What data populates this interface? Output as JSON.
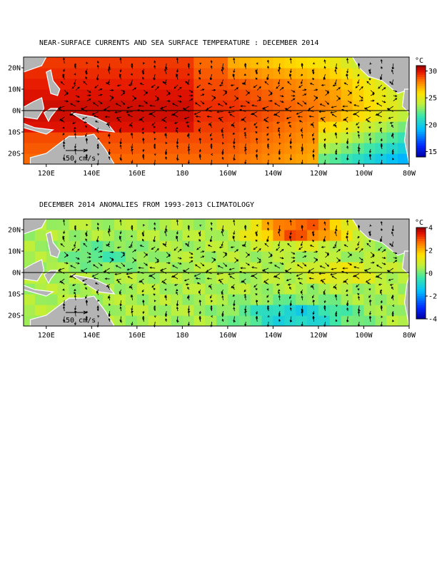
{
  "panels": [
    {
      "title": "NEAR-SURFACE CURRENTS AND SEA SURFACE TEMPERATURE : DECEMBER 2014",
      "kind": "sst",
      "lat_labels": [
        "20N",
        "10N",
        "0N",
        "10S",
        "20S"
      ],
      "lon_labels": [
        "120E",
        "140E",
        "160E",
        "180",
        "160W",
        "140W",
        "120W",
        "100W",
        "80W"
      ],
      "scale_label": "50 cm/s",
      "colorbar": {
        "unit": "°C",
        "ticks": [
          "30",
          "25",
          "20",
          "15"
        ],
        "range": [
          14,
          31
        ]
      }
    },
    {
      "title": "DECEMBER 2014 ANOMALIES FROM 1993-2013 CLIMATOLOGY",
      "kind": "anom",
      "lat_labels": [
        "20N",
        "10N",
        "0N",
        "10S",
        "20S"
      ],
      "lon_labels": [
        "120E",
        "140E",
        "160E",
        "180",
        "160W",
        "140W",
        "120W",
        "100W",
        "80W"
      ],
      "scale_label": "50 cm/s",
      "colorbar": {
        "unit": "°C",
        "ticks": [
          "4",
          "2",
          "0",
          "-2",
          "-4"
        ],
        "range": [
          -4,
          4
        ]
      }
    }
  ],
  "colors": {
    "land": "#b4b4b4",
    "coast": "#ffffff",
    "arrow": "#000000"
  }
}
